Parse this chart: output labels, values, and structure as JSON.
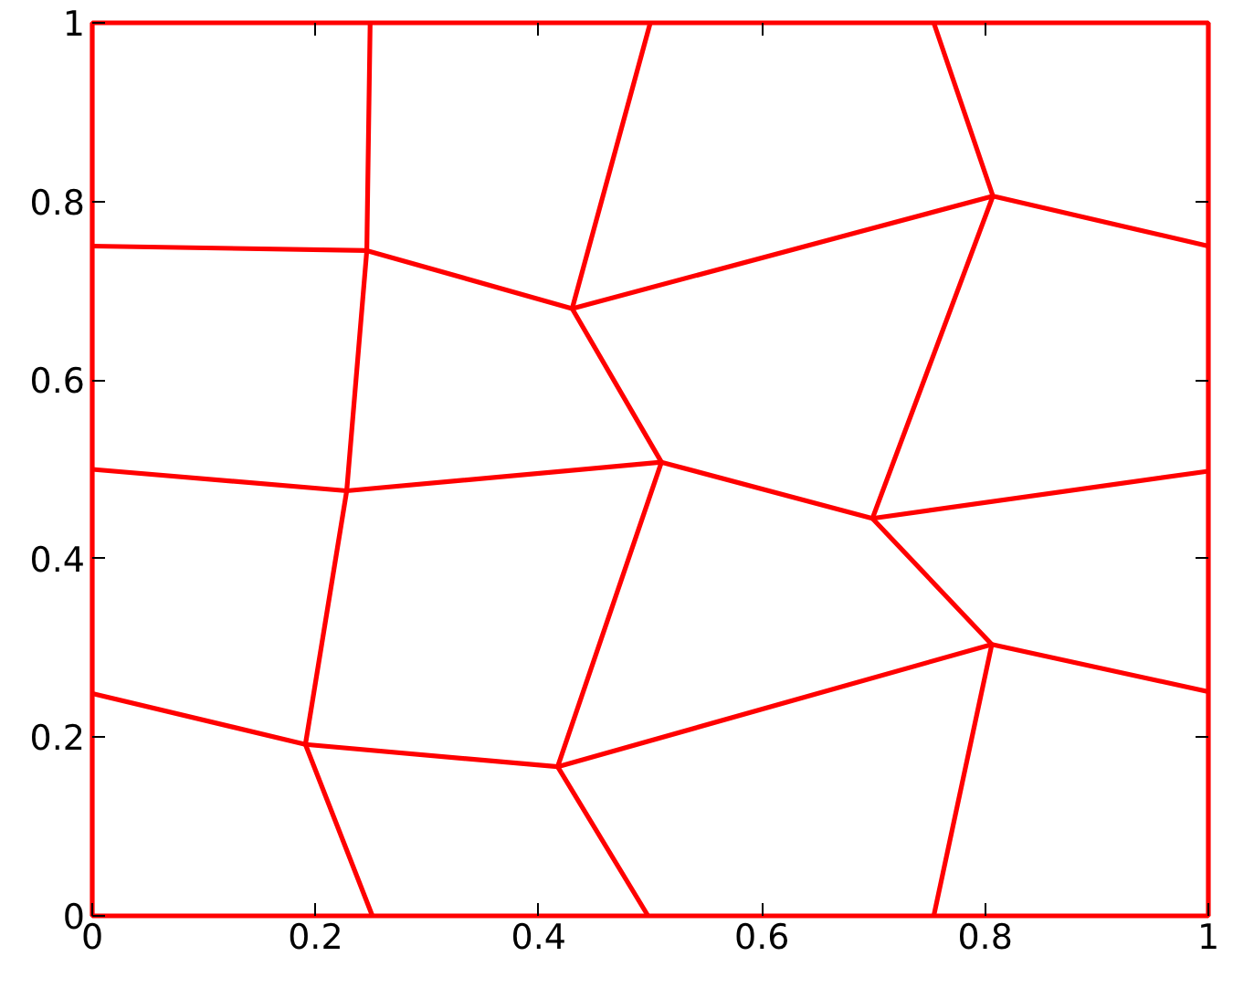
{
  "chart_data": {
    "type": "line",
    "xlim": [
      0,
      1
    ],
    "ylim": [
      0,
      1
    ],
    "xticks": [
      0,
      0.2,
      0.4,
      0.6,
      0.8,
      1
    ],
    "yticks": [
      0,
      0.2,
      0.4,
      0.6,
      0.8,
      1
    ],
    "grid": false,
    "marker": "none",
    "line_style": "solid",
    "series": [
      {
        "color": "#ff0000",
        "x": [
          0,
          0.246,
          0.43,
          0.807,
          1
        ],
        "values": [
          0.75,
          0.745,
          0.68,
          0.806,
          0.75
        ]
      },
      {
        "color": "#ff0000",
        "x": [
          0.249,
          0.246,
          0.228,
          0.191,
          0.251
        ],
        "values": [
          1,
          0.745,
          0.476,
          0.192,
          0
        ]
      },
      {
        "color": "#ff0000",
        "x": [
          0.5,
          0.43,
          0.51,
          0.417,
          0.498
        ],
        "values": [
          1,
          0.68,
          0.508,
          0.167,
          0
        ]
      },
      {
        "color": "#ff0000",
        "x": [
          0.754,
          0.807,
          0.699,
          0.806,
          0.754
        ],
        "values": [
          1,
          0.806,
          0.445,
          0.304,
          0
        ]
      },
      {
        "color": "#ff0000",
        "x": [
          0,
          0.228,
          0.51,
          0.699,
          1
        ],
        "values": [
          0.5,
          0.476,
          0.508,
          0.445,
          0.498
        ]
      },
      {
        "color": "#ff0000",
        "x": [
          0,
          0.191,
          0.417,
          0.806,
          1
        ],
        "values": [
          0.249,
          0.192,
          0.167,
          0.304,
          0.251
        ]
      }
    ]
  }
}
